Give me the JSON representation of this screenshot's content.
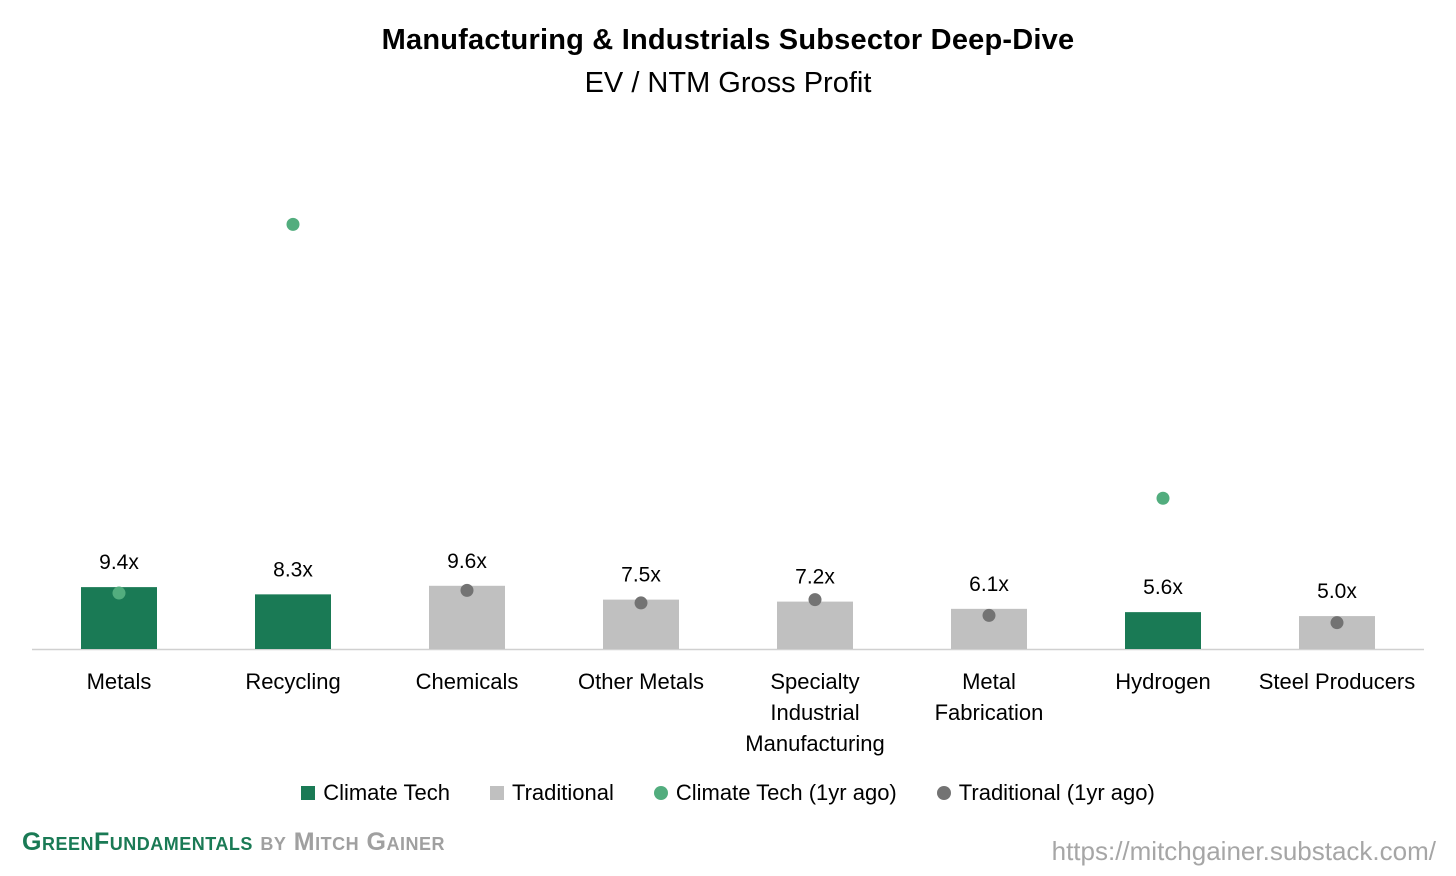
{
  "chart_data": {
    "type": "bar",
    "title": "Manufacturing & Industrials Subsector Deep-Dive",
    "subtitle": "EV / NTM Gross Profit",
    "categories": [
      "Metals",
      "Recycling",
      "Chemicals",
      "Other Metals",
      "Specialty Industrial Manufacturing",
      "Metal Fabrication",
      "Hydrogen",
      "Steel Producers"
    ],
    "values": [
      9.4,
      8.3,
      9.6,
      7.5,
      7.2,
      6.1,
      5.6,
      5.0
    ],
    "value_labels": [
      "9.4x",
      "8.3x",
      "9.6x",
      "7.5x",
      "7.2x",
      "6.1x",
      "5.6x",
      "5.0x"
    ],
    "bar_series": [
      "Climate Tech",
      "Climate Tech",
      "Traditional",
      "Traditional",
      "Traditional",
      "Traditional",
      "Climate Tech",
      "Traditional"
    ],
    "prior_year": [
      8.5,
      64.5,
      8.9,
      7.0,
      7.5,
      5.1,
      22.9,
      4.0
    ],
    "prior_year_series": [
      "Climate Tech (1yr ago)",
      "Climate Tech (1yr ago)",
      "Traditional (1yr ago)",
      "Traditional (1yr ago)",
      "Traditional (1yr ago)",
      "Traditional (1yr ago)",
      "Climate Tech (1yr ago)",
      "Traditional (1yr ago)"
    ],
    "ylim": [
      0,
      72
    ],
    "grid": false,
    "legend_placement": "bottom",
    "series": [
      {
        "name": "Climate Tech",
        "kind": "bar",
        "color": "#1a7a55"
      },
      {
        "name": "Traditional",
        "kind": "bar",
        "color": "#c0c0c0"
      },
      {
        "name": "Climate Tech (1yr ago)",
        "kind": "dot",
        "color": "#52ad7e"
      },
      {
        "name": "Traditional (1yr ago)",
        "kind": "dot",
        "color": "#737373"
      }
    ]
  },
  "footer": {
    "brand_part1": "GreenFundamentals",
    "brand_part2": "by Mitch Gainer",
    "url": "https://mitchgainer.substack.com/"
  }
}
